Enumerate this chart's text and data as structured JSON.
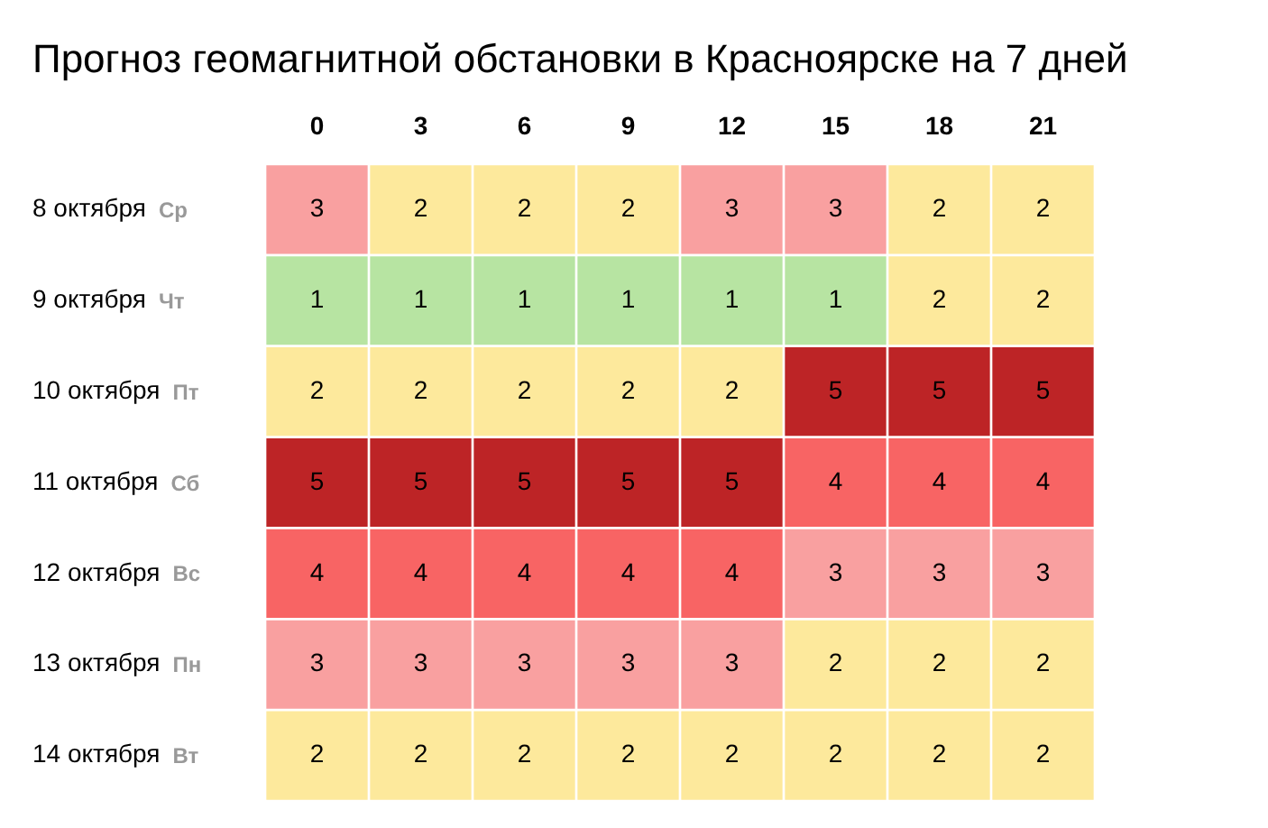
{
  "chart_data": {
    "type": "heatmap",
    "title": "Прогноз геомагнитной обстановки в Красноярске на 7 дней",
    "categories": [
      "0",
      "3",
      "6",
      "9",
      "12",
      "15",
      "18",
      "21"
    ],
    "y_categories": [
      "8 октября",
      "9 октября",
      "10 октября",
      "11 октября",
      "12 октября",
      "13 октября",
      "14 октября"
    ],
    "y2_categories": [
      "Ср",
      "Чт",
      "Пт",
      "Сб",
      "Вс",
      "Пн",
      "Вт"
    ],
    "data_labels": true,
    "cells": [
      [
        3,
        2,
        2,
        2,
        3,
        3,
        2,
        2
      ],
      [
        1,
        1,
        1,
        1,
        1,
        1,
        2,
        2
      ],
      [
        2,
        2,
        2,
        2,
        2,
        5,
        5,
        5
      ],
      [
        5,
        5,
        5,
        5,
        5,
        4,
        4,
        4
      ],
      [
        4,
        4,
        4,
        4,
        4,
        3,
        3,
        3
      ],
      [
        3,
        3,
        3,
        3,
        3,
        2,
        2,
        2
      ],
      [
        2,
        2,
        2,
        2,
        2,
        2,
        2,
        2
      ]
    ]
  }
}
